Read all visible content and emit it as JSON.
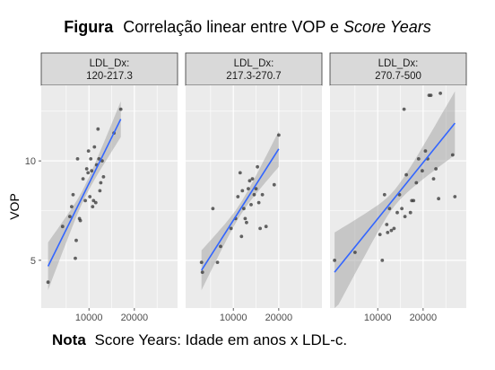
{
  "figure": {
    "title_prefix": "Figura",
    "title_plain": "Correlação linear entre VOP e",
    "title_italic": "Score Years",
    "note_prefix": "Nota",
    "note_text": "Score Years: Idade em anos x LDL-c."
  },
  "chart_data": {
    "type": "scatter",
    "facet_variable": "LDL_Dx",
    "ylabel": "VOP",
    "xlabel": "",
    "ylim": [
      2.6,
      13.8
    ],
    "yticks": [
      5,
      10
    ],
    "xlim": [
      -500,
      29500
    ],
    "xticks": [
      10000,
      20000
    ],
    "xtick_labels": [
      "10000",
      "20000"
    ],
    "grid": true,
    "point_color": "#333333",
    "line_color": "#3366ff",
    "band_color": "#999999",
    "panel_color": "#ebebeb",
    "strip_color": "#d9d9d9",
    "panels": [
      {
        "strip_line1": "LDL_Dx:",
        "strip_line2": "120-217.3",
        "fit": {
          "x": [
            1000,
            17000
          ],
          "y": [
            4.7,
            12.1
          ],
          "band_start": 1.2,
          "band_end": 0.9,
          "band_mid": 0.3
        },
        "points": [
          [
            1000,
            3.9
          ],
          [
            4200,
            6.7
          ],
          [
            5800,
            7.2
          ],
          [
            6200,
            7.7
          ],
          [
            6500,
            8.3
          ],
          [
            7000,
            5.1
          ],
          [
            7200,
            6.0
          ],
          [
            7500,
            10.1
          ],
          [
            7900,
            7.1
          ],
          [
            8100,
            7.0
          ],
          [
            8700,
            9.1
          ],
          [
            9200,
            8.0
          ],
          [
            9500,
            9.6
          ],
          [
            9800,
            9.4
          ],
          [
            9900,
            10.5
          ],
          [
            10200,
            8.2
          ],
          [
            10400,
            10.1
          ],
          [
            10600,
            9.5
          ],
          [
            10800,
            7.7
          ],
          [
            11000,
            8.0
          ],
          [
            11200,
            10.7
          ],
          [
            11500,
            7.9
          ],
          [
            11700,
            9.8
          ],
          [
            12000,
            11.6
          ],
          [
            12200,
            10.1
          ],
          [
            12400,
            8.5
          ],
          [
            12600,
            8.9
          ],
          [
            12900,
            10.0
          ],
          [
            13200,
            9.2
          ],
          [
            15500,
            11.4
          ],
          [
            17000,
            12.6
          ]
        ]
      },
      {
        "strip_line1": "LDL_Dx:",
        "strip_line2": "217.3-270.7",
        "fit": {
          "x": [
            3000,
            20000
          ],
          "y": [
            4.5,
            10.6
          ],
          "band_start": 1.0,
          "band_end": 0.9,
          "band_mid": 0.3
        },
        "points": [
          [
            3000,
            4.9
          ],
          [
            3200,
            4.4
          ],
          [
            5500,
            7.6
          ],
          [
            6500,
            4.9
          ],
          [
            7200,
            5.7
          ],
          [
            9500,
            6.6
          ],
          [
            10500,
            7.1
          ],
          [
            11000,
            8.2
          ],
          [
            11500,
            9.4
          ],
          [
            11800,
            6.2
          ],
          [
            12000,
            8.5
          ],
          [
            12300,
            7.6
          ],
          [
            12600,
            7.1
          ],
          [
            12900,
            6.9
          ],
          [
            13300,
            8.6
          ],
          [
            13600,
            9.0
          ],
          [
            13900,
            7.8
          ],
          [
            14200,
            9.1
          ],
          [
            14600,
            8.3
          ],
          [
            15000,
            8.6
          ],
          [
            15300,
            9.7
          ],
          [
            15600,
            7.9
          ],
          [
            15900,
            6.6
          ],
          [
            16400,
            8.3
          ],
          [
            17200,
            6.7
          ],
          [
            19000,
            8.8
          ],
          [
            20000,
            11.3
          ]
        ]
      },
      {
        "strip_line1": "LDL_Dx:",
        "strip_line2": "270.7-500",
        "fit": {
          "x": [
            500,
            27000
          ],
          "y": [
            4.4,
            11.9
          ],
          "band_start": 2.0,
          "band_end": 1.6,
          "band_mid": 0.4
        },
        "points": [
          [
            500,
            5.0
          ],
          [
            5000,
            5.4
          ],
          [
            10500,
            6.3
          ],
          [
            11000,
            5.0
          ],
          [
            11500,
            8.3
          ],
          [
            12000,
            6.8
          ],
          [
            12200,
            6.4
          ],
          [
            12600,
            7.6
          ],
          [
            13000,
            6.5
          ],
          [
            13600,
            6.6
          ],
          [
            14300,
            7.4
          ],
          [
            14800,
            8.3
          ],
          [
            15300,
            7.6
          ],
          [
            15800,
            12.6
          ],
          [
            16000,
            7.2
          ],
          [
            16300,
            9.3
          ],
          [
            17200,
            7.4
          ],
          [
            17500,
            8.0
          ],
          [
            17900,
            8.0
          ],
          [
            18500,
            8.9
          ],
          [
            19000,
            10.1
          ],
          [
            19800,
            9.5
          ],
          [
            20500,
            10.5
          ],
          [
            21000,
            10.1
          ],
          [
            21300,
            13.3
          ],
          [
            21700,
            13.3
          ],
          [
            22300,
            9.1
          ],
          [
            22800,
            9.6
          ],
          [
            23400,
            8.1
          ],
          [
            23800,
            13.4
          ],
          [
            26500,
            10.3
          ],
          [
            27000,
            8.2
          ]
        ]
      }
    ]
  }
}
